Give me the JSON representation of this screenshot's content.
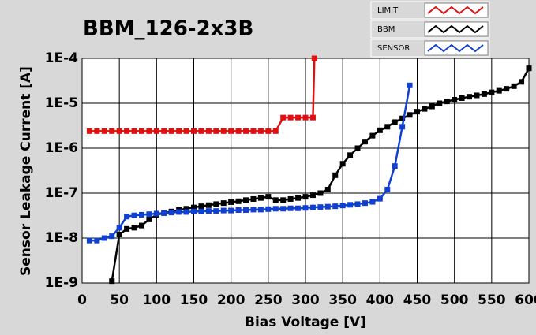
{
  "chart_data": {
    "type": "line",
    "title": "BBM_126-2x3B",
    "x_label": "Bias Voltage [V]",
    "y_label": "Sensor Leakage Current [A]",
    "log_y": true,
    "grid": true,
    "xlim": [
      0,
      600
    ],
    "xticks": [
      0,
      50,
      100,
      150,
      200,
      250,
      300,
      350,
      400,
      450,
      500,
      550,
      600
    ],
    "ylim": [
      1e-09,
      0.0001
    ],
    "yticks": [
      {
        "value": 1e-09,
        "label": "1E-9"
      },
      {
        "value": 1e-08,
        "label": "1E-8"
      },
      {
        "value": 1e-07,
        "label": "1E-7"
      },
      {
        "value": 1e-06,
        "label": "1E-6"
      },
      {
        "value": 1e-05,
        "label": "1E-5"
      },
      {
        "value": 0.0001,
        "label": "1E-4"
      }
    ],
    "series": [
      {
        "name": "LIMIT",
        "color": "#e01010",
        "x": [
          10,
          20,
          30,
          40,
          50,
          60,
          70,
          80,
          90,
          100,
          110,
          120,
          130,
          140,
          150,
          160,
          170,
          180,
          190,
          200,
          210,
          220,
          230,
          240,
          250,
          260,
          270,
          280,
          290,
          300,
          310,
          312
        ],
        "values": [
          2.4e-06,
          2.4e-06,
          2.4e-06,
          2.4e-06,
          2.4e-06,
          2.4e-06,
          2.4e-06,
          2.4e-06,
          2.4e-06,
          2.4e-06,
          2.4e-06,
          2.4e-06,
          2.4e-06,
          2.4e-06,
          2.4e-06,
          2.4e-06,
          2.4e-06,
          2.4e-06,
          2.4e-06,
          2.4e-06,
          2.4e-06,
          2.4e-06,
          2.4e-06,
          2.4e-06,
          2.4e-06,
          2.4e-06,
          4.8e-06,
          4.8e-06,
          4.8e-06,
          4.8e-06,
          4.8e-06,
          0.0001
        ]
      },
      {
        "name": "BBM",
        "color": "#000000",
        "x": [
          40,
          50,
          60,
          70,
          80,
          90,
          100,
          110,
          120,
          130,
          140,
          150,
          160,
          170,
          180,
          190,
          200,
          210,
          220,
          230,
          240,
          250,
          260,
          270,
          280,
          290,
          300,
          310,
          320,
          330,
          340,
          350,
          360,
          370,
          380,
          390,
          400,
          410,
          420,
          430,
          440,
          450,
          460,
          470,
          480,
          490,
          500,
          510,
          520,
          530,
          540,
          550,
          560,
          570,
          580,
          590,
          600
        ],
        "values": [
          1.1e-09,
          1.2e-08,
          1.6e-08,
          1.7e-08,
          1.9e-08,
          2.6e-08,
          3.3e-08,
          3.6e-08,
          3.9e-08,
          4.2e-08,
          4.5e-08,
          4.8e-08,
          5.1e-08,
          5.4e-08,
          5.7e-08,
          6e-08,
          6.3e-08,
          6.6e-08,
          7e-08,
          7.4e-08,
          7.8e-08,
          8.3e-08,
          7e-08,
          7e-08,
          7.4e-08,
          7.8e-08,
          8.3e-08,
          9e-08,
          1e-07,
          1.2e-07,
          2.5e-07,
          4.5e-07,
          7e-07,
          1e-06,
          1.4e-06,
          1.9e-06,
          2.5e-06,
          3e-06,
          3.8e-06,
          4.6e-06,
          5.5e-06,
          6.5e-06,
          7.5e-06,
          8.5e-06,
          1e-05,
          1.1e-05,
          1.2e-05,
          1.3e-05,
          1.4e-05,
          1.5e-05,
          1.6e-05,
          1.75e-05,
          1.9e-05,
          2.1e-05,
          2.4e-05,
          3e-05,
          6e-05
        ]
      },
      {
        "name": "SENSOR",
        "color": "#1040d0",
        "x": [
          10,
          20,
          30,
          40,
          50,
          60,
          70,
          80,
          90,
          100,
          110,
          120,
          130,
          140,
          150,
          160,
          170,
          180,
          190,
          200,
          210,
          220,
          230,
          240,
          250,
          260,
          270,
          280,
          290,
          300,
          310,
          320,
          330,
          340,
          350,
          360,
          370,
          380,
          390,
          400,
          410,
          420,
          430,
          440
        ],
        "values": [
          8.8e-09,
          8.8e-09,
          1e-08,
          1.1e-08,
          1.7e-08,
          3e-08,
          3.2e-08,
          3.3e-08,
          3.4e-08,
          3.5e-08,
          3.6e-08,
          3.7e-08,
          3.8e-08,
          3.8e-08,
          3.9e-08,
          3.9e-08,
          4e-08,
          4e-08,
          4.1e-08,
          4.1e-08,
          4.2e-08,
          4.2e-08,
          4.3e-08,
          4.3e-08,
          4.4e-08,
          4.5e-08,
          4.5e-08,
          4.6e-08,
          4.6e-08,
          4.7e-08,
          4.8e-08,
          4.9e-08,
          5e-08,
          5.1e-08,
          5.3e-08,
          5.5e-08,
          5.7e-08,
          6e-08,
          6.4e-08,
          7.5e-08,
          1.2e-07,
          4e-07,
          3e-06,
          2.5e-05
        ]
      }
    ]
  }
}
